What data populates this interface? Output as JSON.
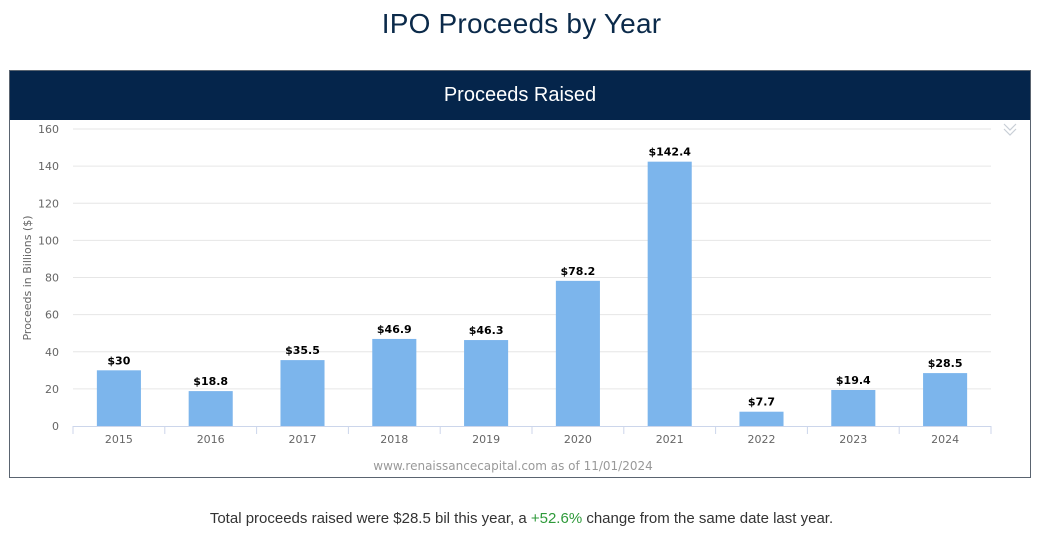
{
  "page": {
    "title": "IPO Proceeds by Year"
  },
  "panel": {
    "header": "Proceeds Raised",
    "collapse_icon": "double-chevron-down-icon"
  },
  "chart_data": {
    "type": "bar",
    "title": "Proceeds Raised",
    "xlabel": "",
    "ylabel": "Proceeds in Billions ($)",
    "ylim": [
      0,
      160
    ],
    "yticks": [
      0,
      20,
      40,
      60,
      80,
      100,
      120,
      140,
      160
    ],
    "categories": [
      "2015",
      "2016",
      "2017",
      "2018",
      "2019",
      "2020",
      "2021",
      "2022",
      "2023",
      "2024"
    ],
    "values": [
      30,
      18.8,
      35.5,
      46.9,
      46.3,
      78.2,
      142.4,
      7.7,
      19.4,
      28.5
    ],
    "data_labels": [
      "$30",
      "$18.8",
      "$35.5",
      "$46.9",
      "$46.3",
      "$78.2",
      "$142.4",
      "$7.7",
      "$19.4",
      "$28.5"
    ],
    "bar_color": "#7cb5ec",
    "grid": true,
    "credit": "www.renaissancecapital.com as of 11/01/2024"
  },
  "summary": {
    "prefix": "Total proceeds raised were $28.5 bil this year, a ",
    "change": "+52.6%",
    "suffix": " change from the same date last year.",
    "change_color": "#2e9a3a"
  }
}
